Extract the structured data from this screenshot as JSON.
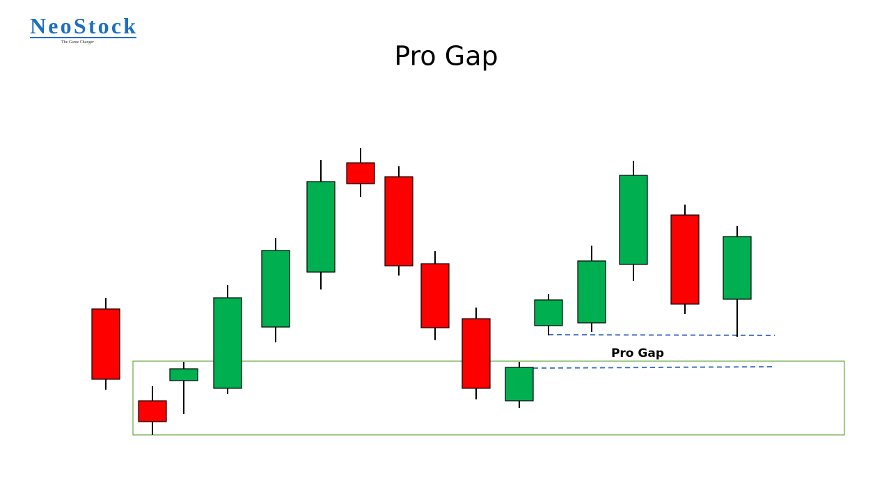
{
  "logo": {
    "name": "NeoStock",
    "tagline": "The Game Changer"
  },
  "title": "Pro Gap",
  "annotation": "Pro Gap"
}
